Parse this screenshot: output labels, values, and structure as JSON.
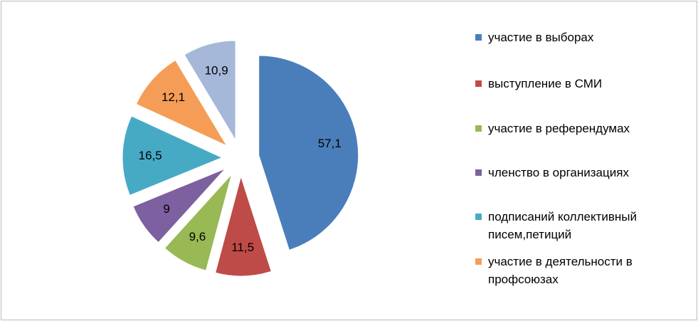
{
  "chart_data": {
    "type": "pie",
    "categories": [
      "участие в выборах",
      "выступление в СМИ",
      "участие в референдумах",
      "членство в организациях",
      "подписаний коллективный писем,петиций",
      "участие в деятельности в профсоюзах",
      null
    ],
    "values": [
      57.1,
      11.5,
      9.6,
      9,
      16.5,
      12.1,
      10.9
    ],
    "value_labels": [
      "57,1",
      "11,5",
      "9,6",
      "9",
      "16,5",
      "12,1",
      "10,9"
    ],
    "colors": [
      "#4a7ebb",
      "#be4b48",
      "#98b954",
      "#7d60a0",
      "#46aac5",
      "#f59d56",
      "#a5b8da"
    ]
  }
}
